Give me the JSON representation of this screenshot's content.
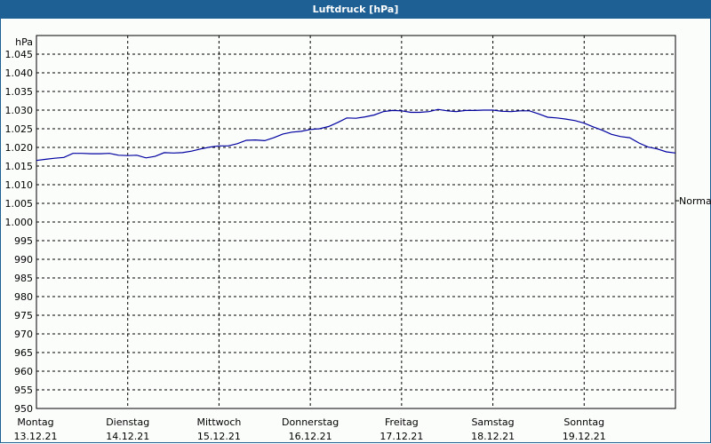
{
  "window": {
    "title": "Luftdruck [hPa]"
  },
  "colors": {
    "titlebar": "#1e6094",
    "line": "#0000a0",
    "grid": "#000000",
    "background": "#fbfdfb"
  },
  "chart_data": {
    "type": "line",
    "title": "Luftdruck [hPa]",
    "ylabel": "hPa",
    "xlabel": "",
    "ylim": [
      950,
      1048
    ],
    "y_ticks": [
      "950",
      "955",
      "960",
      "965",
      "970",
      "975",
      "980",
      "985",
      "990",
      "995",
      "1.000",
      "1.005",
      "1.010",
      "1.015",
      "1.020",
      "1.025",
      "1.030",
      "1.035",
      "1.040",
      "1.045"
    ],
    "y_tick_values": [
      950,
      955,
      960,
      965,
      970,
      975,
      980,
      985,
      990,
      995,
      1000,
      1005,
      1010,
      1015,
      1020,
      1025,
      1030,
      1035,
      1040,
      1045
    ],
    "x_ticks": [
      {
        "day": "Montag",
        "date": "13.12.21"
      },
      {
        "day": "Dienstag",
        "date": "14.12.21"
      },
      {
        "day": "Mittwoch",
        "date": "15.12.21"
      },
      {
        "day": "Donnerstag",
        "date": "16.12.21"
      },
      {
        "day": "Freitag",
        "date": "17.12.21"
      },
      {
        "day": "Samstag",
        "date": "18.12.21"
      },
      {
        "day": "Sonntag",
        "date": "19.12.21"
      }
    ],
    "reference_line": {
      "label": "Normal",
      "value": 1005.7
    },
    "grid": true,
    "series": [
      {
        "name": "Luftdruck",
        "x_days": [
          0,
          0.1,
          0.2,
          0.3,
          0.4,
          0.5,
          0.6,
          0.7,
          0.8,
          0.9,
          1.0,
          1.1,
          1.2,
          1.3,
          1.4,
          1.5,
          1.6,
          1.7,
          1.8,
          1.9,
          2.0,
          2.1,
          2.2,
          2.3,
          2.4,
          2.5,
          2.6,
          2.7,
          2.8,
          2.9,
          3.0,
          3.1,
          3.2,
          3.3,
          3.4,
          3.5,
          3.6,
          3.7,
          3.8,
          3.9,
          4.0,
          4.1,
          4.2,
          4.3,
          4.4,
          4.5,
          4.6,
          4.7,
          4.8,
          4.9,
          5.0,
          5.1,
          5.2,
          5.3,
          5.4,
          5.5,
          5.6,
          5.7,
          5.8,
          5.9,
          6.0,
          6.1,
          6.2,
          6.3,
          6.4,
          6.5,
          6.6,
          6.7,
          6.8,
          6.9,
          7.0
        ],
        "values": [
          1016.5,
          1016.8,
          1017.1,
          1017.3,
          1018.4,
          1018.4,
          1018.3,
          1018.3,
          1018.4,
          1017.9,
          1017.8,
          1017.9,
          1017.2,
          1017.6,
          1018.6,
          1018.5,
          1018.6,
          1019.0,
          1019.6,
          1020.1,
          1020.4,
          1020.4,
          1021.0,
          1021.9,
          1022.0,
          1021.8,
          1022.6,
          1023.6,
          1024.1,
          1024.3,
          1024.8,
          1025.0,
          1025.6,
          1026.7,
          1027.9,
          1027.8,
          1028.2,
          1028.7,
          1029.6,
          1029.9,
          1029.8,
          1029.4,
          1029.4,
          1029.6,
          1030.2,
          1029.8,
          1029.6,
          1029.9,
          1029.9,
          1030.0,
          1030.0,
          1029.7,
          1029.6,
          1029.8,
          1029.8,
          1029.0,
          1028.1,
          1027.9,
          1027.6,
          1027.2,
          1026.5,
          1025.5,
          1024.6,
          1023.5,
          1022.9,
          1022.6,
          1021.2,
          1020.1,
          1019.6,
          1018.8,
          1018.5
        ]
      }
    ]
  }
}
